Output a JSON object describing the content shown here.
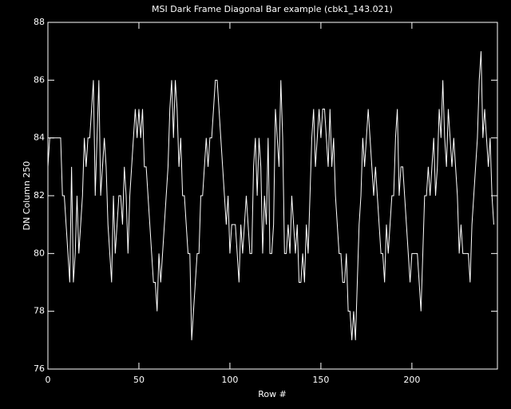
{
  "chart_data": {
    "type": "line",
    "title": "MSI Dark Frame Diagonal Bar example (cbk1_143.021)",
    "x_label": "Row #",
    "y_label": "DN Column 250",
    "xlim": [
      0,
      247
    ],
    "ylim": [
      76,
      88
    ],
    "xticks": [
      0,
      50,
      100,
      150,
      200
    ],
    "yticks": [
      76,
      78,
      80,
      82,
      84,
      86,
      88
    ],
    "grid": false,
    "series": [
      {
        "color": "#ffffff",
        "x": [
          0,
          1,
          2,
          3,
          4,
          5,
          6,
          7,
          8,
          9,
          10,
          11,
          12,
          13,
          14,
          15,
          16,
          17,
          18,
          19,
          20,
          21,
          22,
          23,
          24,
          25,
          26,
          27,
          28,
          29,
          30,
          31,
          32,
          33,
          34,
          35,
          36,
          37,
          38,
          39,
          40,
          41,
          42,
          43,
          44,
          45,
          46,
          47,
          48,
          49,
          50,
          51,
          52,
          53,
          54,
          55,
          56,
          57,
          58,
          59,
          60,
          61,
          62,
          63,
          64,
          65,
          66,
          67,
          68,
          69,
          70,
          71,
          72,
          73,
          74,
          75,
          76,
          77,
          78,
          79,
          80,
          81,
          82,
          83,
          84,
          85,
          86,
          87,
          88,
          89,
          90,
          91,
          92,
          93,
          94,
          95,
          96,
          97,
          98,
          99,
          100,
          101,
          102,
          103,
          104,
          105,
          106,
          107,
          108,
          109,
          110,
          111,
          112,
          113,
          114,
          115,
          116,
          117,
          118,
          119,
          120,
          121,
          122,
          123,
          124,
          125,
          126,
          127,
          128,
          129,
          130,
          131,
          132,
          133,
          134,
          135,
          136,
          137,
          138,
          139,
          140,
          141,
          142,
          143,
          144,
          145,
          146,
          147,
          148,
          149,
          150,
          151,
          152,
          153,
          154,
          155,
          156,
          157,
          158,
          159,
          160,
          161,
          162,
          163,
          164,
          165,
          166,
          167,
          168,
          169,
          170,
          171,
          172,
          173,
          174,
          175,
          176,
          177,
          178,
          179,
          180,
          181,
          182,
          183,
          184,
          185,
          186,
          187,
          188,
          189,
          190,
          191,
          192,
          193,
          194,
          195,
          196,
          197,
          198,
          199,
          200,
          201,
          202,
          203,
          204,
          205,
          206,
          207,
          208,
          209,
          210,
          211,
          212,
          213,
          214,
          215,
          216,
          217,
          218,
          219,
          220,
          221,
          222,
          223,
          224,
          225,
          226,
          227,
          228,
          229,
          230,
          231,
          232,
          233,
          234,
          235,
          236,
          237,
          238,
          239,
          240,
          241,
          242,
          243,
          244,
          245
        ],
        "values": [
          83,
          84,
          84,
          84,
          84,
          84,
          84,
          84,
          82,
          82,
          81,
          80,
          79,
          83,
          79,
          80,
          82,
          80,
          81,
          82,
          84,
          83,
          84,
          84,
          85,
          86,
          82,
          84,
          86,
          82,
          83,
          84,
          83,
          81,
          80,
          79,
          82,
          80,
          81,
          82,
          82,
          81,
          83,
          82,
          80,
          82,
          83,
          84,
          85,
          84,
          85,
          84,
          85,
          83,
          83,
          82,
          81,
          80,
          79,
          79,
          78,
          80,
          79,
          80,
          81,
          82,
          83,
          85,
          86,
          84,
          86,
          85,
          83,
          84,
          82,
          82,
          81,
          80,
          80,
          77,
          78,
          79,
          80,
          80,
          82,
          82,
          83,
          84,
          83,
          84,
          84,
          85,
          86,
          86,
          85,
          84,
          83,
          82,
          81,
          82,
          80,
          81,
          81,
          81,
          80,
          79,
          81,
          80,
          81,
          82,
          81,
          80,
          80,
          83,
          84,
          82,
          84,
          83,
          80,
          82,
          81,
          84,
          80,
          80,
          81,
          85,
          84,
          83,
          86,
          84,
          80,
          80,
          81,
          80,
          82,
          81,
          80,
          81,
          79,
          79,
          80,
          79,
          81,
          80,
          82,
          84,
          85,
          83,
          84,
          85,
          84,
          85,
          85,
          84,
          83,
          85,
          83,
          84,
          82,
          81,
          80,
          80,
          79,
          79,
          80,
          78,
          78,
          77,
          78,
          77,
          79,
          81,
          82,
          84,
          83,
          84,
          85,
          84,
          83,
          82,
          83,
          82,
          81,
          80,
          80,
          79,
          81,
          80,
          81,
          82,
          82,
          84,
          85,
          82,
          83,
          83,
          82,
          81,
          80,
          79,
          80,
          80,
          80,
          80,
          79,
          78,
          80,
          82,
          82,
          83,
          82,
          83,
          84,
          82,
          83,
          85,
          84,
          86,
          84,
          83,
          85,
          84,
          83,
          84,
          83,
          82,
          80,
          81,
          80,
          80,
          80,
          80,
          79,
          81,
          82,
          83,
          84,
          86,
          87,
          84,
          85,
          84,
          83,
          84,
          82,
          81
        ]
      }
    ]
  }
}
